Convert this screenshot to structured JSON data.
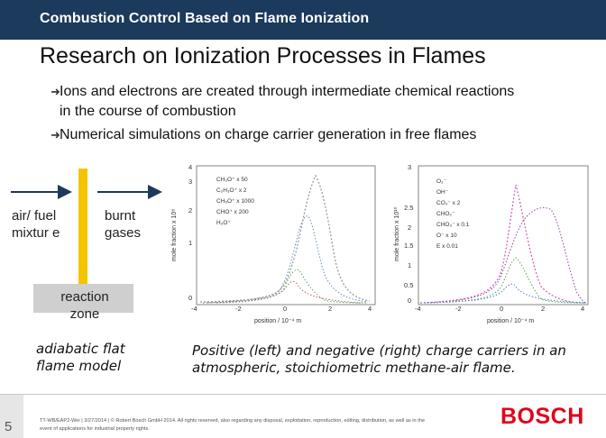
{
  "header": {
    "title": "Combustion Control Based on Flame Ionization"
  },
  "slide": {
    "heading": "Research on Ionization Processes in Flames",
    "bullets": [
      "Ions and electrons are created through intermediate chemical reactions in the course of combustion",
      "Numerical simulations on charge carrier generation in free flames"
    ],
    "bullet_icon": "arrow-right-icon"
  },
  "flame_model": {
    "inflow_label": "air/ fuel mixtur e",
    "outflow_label": "burnt gases",
    "zone_label": "reaction zone",
    "caption": "adiabatic flat flame model",
    "colors": {
      "zone": "#f5c400",
      "arrow": "#1b3a5c",
      "zone_box": "#cfcfcf"
    }
  },
  "plots": {
    "caption": "Positive (left) and negative (right) charge carriers in an atmospheric, stoichiometric methane-air flame.",
    "left": {
      "ylabel": "mole fraction x 10⁸",
      "xlabel": "position / 10⁻⁴ m",
      "legend": [
        "CH₃O⁺ x 50",
        "C₂H₃O⁺ x 2",
        "CH₅O⁺ x 1000",
        "CHO⁺ x 200",
        "H₃O⁺"
      ],
      "xticks": [
        "-4",
        "-2",
        "0",
        "2",
        "4"
      ],
      "yticks": [
        "4",
        "3",
        "2",
        "1",
        "0"
      ]
    },
    "right": {
      "ylabel": "mole fraction x 10¹⁰",
      "xlabel": "position / 10⁻⁴ m",
      "legend": [
        "O₂⁻",
        "OH⁻",
        "CO₃⁻ x 2",
        "CHO₂⁻",
        "CHO₃⁻ x 0.1",
        "O⁻ x 10",
        "E x 0.01"
      ],
      "xticks": [
        "-4",
        "-2",
        "0",
        "2",
        "4"
      ],
      "yticks": [
        "3",
        "2.5",
        "2",
        "1.5",
        "1",
        "0.5",
        "0"
      ]
    }
  },
  "footer": {
    "page_number": "5",
    "legal": "TT-WB/EAP2-Wei | 3/27/2014 | © Robert Bosch GmbH 2014. All rights reserved, also regarding any disposal, exploitation, reproduction, editing, distribution, as well as in the event of applications for industrial property rights.",
    "logo": "BOSCH",
    "logo_color": "#e2001a"
  }
}
